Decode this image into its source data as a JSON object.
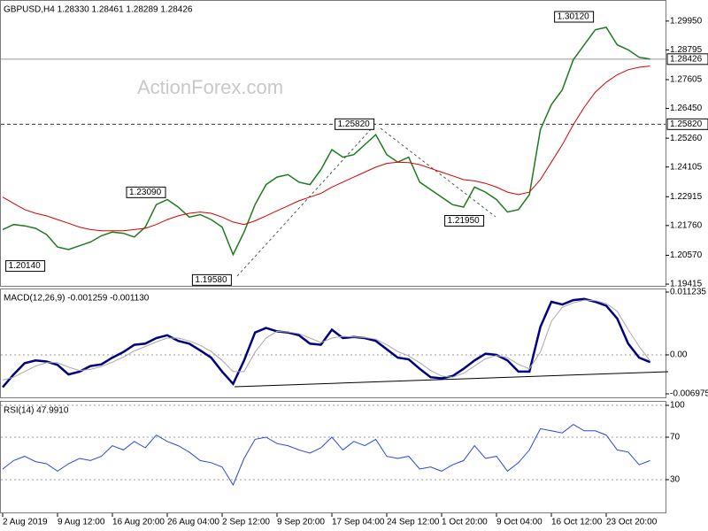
{
  "chart_data": [
    {
      "type": "line",
      "title": "GBPUSD,H4  1.28330 1.28461 1.28289 1.28426",
      "watermark": "ActionForex.com",
      "ylim": [
        1.19345,
        1.30688
      ],
      "yticks": [
        {
          "value": 1.2995,
          "label": "1.29950"
        },
        1.28795,
        1.27605,
        {
          "value": 1.2645,
          "label": "1.26450"
        },
        {
          "value": 1.2526,
          "label": "1.25260"
        },
        1.24105,
        1.22915,
        {
          "value": 1.2176,
          "label": "1.21760"
        },
        {
          "value": 1.2057,
          "label": "1.20570"
        },
        1.19415
      ],
      "grid": false,
      "series": [
        {
          "color": "#1f7a1f",
          "values": [
            1.216,
            1.218,
            1.2175,
            1.2165,
            1.214,
            1.209,
            1.208,
            1.2095,
            1.211,
            1.2135,
            1.215,
            1.2145,
            1.213,
            1.217,
            1.226,
            1.228,
            1.225,
            1.221,
            1.222,
            1.22,
            1.217,
            1.206,
            1.215,
            1.226,
            1.234,
            1.237,
            1.238,
            1.235,
            1.234,
            1.24,
            1.248,
            1.245,
            1.246,
            1.25,
            1.254,
            1.246,
            1.243,
            1.245,
            1.235,
            1.232,
            1.229,
            1.226,
            1.225,
            1.233,
            1.231,
            1.228,
            1.223,
            1.224,
            1.23,
            1.256,
            1.266,
            1.272,
            1.284,
            1.29,
            1.296,
            1.297,
            1.29,
            1.288,
            1.285,
            1.2843
          ]
        },
        {
          "color": "#d40000",
          "values": [
            1.229,
            1.2265,
            1.224,
            1.2225,
            1.2215,
            1.22,
            1.2185,
            1.217,
            1.216,
            1.2155,
            1.2155,
            1.2155,
            1.216,
            1.2165,
            1.218,
            1.22,
            1.2215,
            1.2225,
            1.223,
            1.2225,
            1.221,
            1.219,
            1.218,
            1.2195,
            1.2215,
            1.2235,
            1.2255,
            1.2275,
            1.229,
            1.2305,
            1.233,
            1.235,
            1.237,
            1.239,
            1.241,
            1.2425,
            1.243,
            1.2428,
            1.242,
            1.2405,
            1.239,
            1.2375,
            1.236,
            1.2355,
            1.2345,
            1.233,
            1.231,
            1.23,
            1.231,
            1.236,
            1.243,
            1.25,
            1.258,
            1.265,
            1.271,
            1.275,
            1.278,
            1.28,
            1.281,
            1.2815
          ]
        }
      ],
      "price_lines": [
        {
          "value": 1.28426,
          "label": "1.28426",
          "style": "solid"
        },
        {
          "value": 1.2582,
          "label": "1.25820",
          "style": "dashed"
        }
      ],
      "annotations": [
        {
          "value": 1.3012,
          "label": "1.30120"
        },
        {
          "value": 1.2582,
          "label": "1.25820"
        },
        {
          "value": 1.2309,
          "label": "1.23090"
        },
        {
          "value": 1.2014,
          "label": "1.20140"
        },
        {
          "value": 1.1958,
          "label": "1.19580"
        },
        {
          "value": 1.2195,
          "label": "1.21950"
        }
      ]
    },
    {
      "type": "line",
      "title": "MACD(12,26,9) -0.001259 -0.001130",
      "ylim": [
        -0.006975,
        0.011235
      ],
      "yticks": [
        0.011235,
        {
          "value": 0,
          "label": "0.00"
        },
        -0.006975
      ],
      "grid": false,
      "series": [
        {
          "color": "#000080",
          "values": [
            -0.0058,
            -0.0035,
            -0.0015,
            -0.001,
            -0.0012,
            -0.0018,
            -0.0035,
            -0.003,
            -0.002,
            -0.0017,
            -0.0005,
            0.0005,
            0.0018,
            0.002,
            0.003,
            0.0035,
            0.0025,
            0.002,
            0.0008,
            -0.0005,
            -0.003,
            -0.0052,
            -0.001,
            0.004,
            0.0048,
            0.0042,
            0.004,
            0.0035,
            0.002,
            0.0018,
            0.0045,
            0.003,
            0.0032,
            0.003,
            0.0025,
            0.001,
            -0.0005,
            -0.0008,
            -0.0025,
            -0.004,
            -0.0042,
            -0.0038,
            -0.0025,
            -0.001,
            0.0002,
            0.0,
            -0.001,
            -0.003,
            -0.003,
            0.005,
            0.0095,
            0.009,
            0.0098,
            0.01,
            0.0095,
            0.0088,
            0.0065,
            0.002,
            -0.0005,
            -0.0013
          ]
        },
        {
          "color": "#a8a8a8",
          "values": [
            -0.0045,
            -0.004,
            -0.003,
            -0.002,
            -0.0014,
            -0.0014,
            -0.0022,
            -0.0028,
            -0.0026,
            -0.0021,
            -0.0013,
            -0.0004,
            0.0007,
            0.0015,
            0.0023,
            0.003,
            0.003,
            0.0025,
            0.0017,
            0.0006,
            -0.001,
            -0.003,
            -0.003,
            0.0005,
            0.003,
            0.0042,
            0.0041,
            0.0038,
            0.003,
            0.0022,
            0.003,
            0.0033,
            0.0032,
            0.0031,
            0.0028,
            0.0018,
            0.0006,
            -0.0002,
            -0.0014,
            -0.0028,
            -0.0038,
            -0.004,
            -0.0033,
            -0.002,
            -0.0007,
            -0.0001,
            -0.0005,
            -0.0017,
            -0.0025,
            0.0005,
            0.006,
            0.0085,
            0.0093,
            0.0098,
            0.0097,
            0.0092,
            0.0078,
            0.0045,
            0.0015,
            -0.0011
          ]
        }
      ]
    },
    {
      "type": "line",
      "title": "RSI(14) 47.9910",
      "ylim": [
        0,
        100
      ],
      "yticks": [
        100,
        70,
        30
      ],
      "grid": true,
      "categories": [
        "2 Aug 2019",
        null,
        null,
        null,
        null,
        "9 Aug 12:00",
        null,
        null,
        null,
        null,
        "16 Aug 20:00",
        null,
        null,
        null,
        null,
        "26 Aug 04:00",
        null,
        null,
        null,
        null,
        "2 Sep 12:00",
        null,
        null,
        null,
        null,
        "9 Sep 20:00",
        null,
        null,
        null,
        null,
        "17 Sep 04:00",
        null,
        null,
        null,
        null,
        "24 Sep 12:00",
        null,
        null,
        null,
        null,
        "1 Oct 20:00",
        null,
        null,
        null,
        null,
        "9 Oct 04:00",
        null,
        null,
        null,
        null,
        "16 Oct 12:00",
        null,
        null,
        null,
        null,
        "23 Oct 20:00",
        null,
        null,
        null,
        null
      ],
      "series": [
        {
          "color": "#2946e0",
          "values": [
            40,
            48,
            52,
            47,
            45,
            38,
            45,
            50,
            48,
            52,
            62,
            58,
            66,
            60,
            72,
            66,
            62,
            56,
            48,
            46,
            42,
            25,
            50,
            68,
            70,
            64,
            62,
            58,
            55,
            60,
            70,
            58,
            66,
            62,
            68,
            52,
            50,
            52,
            40,
            42,
            38,
            44,
            48,
            62,
            50,
            52,
            38,
            46,
            58,
            78,
            76,
            74,
            82,
            76,
            76,
            72,
            58,
            56,
            44,
            48
          ]
        }
      ]
    }
  ]
}
